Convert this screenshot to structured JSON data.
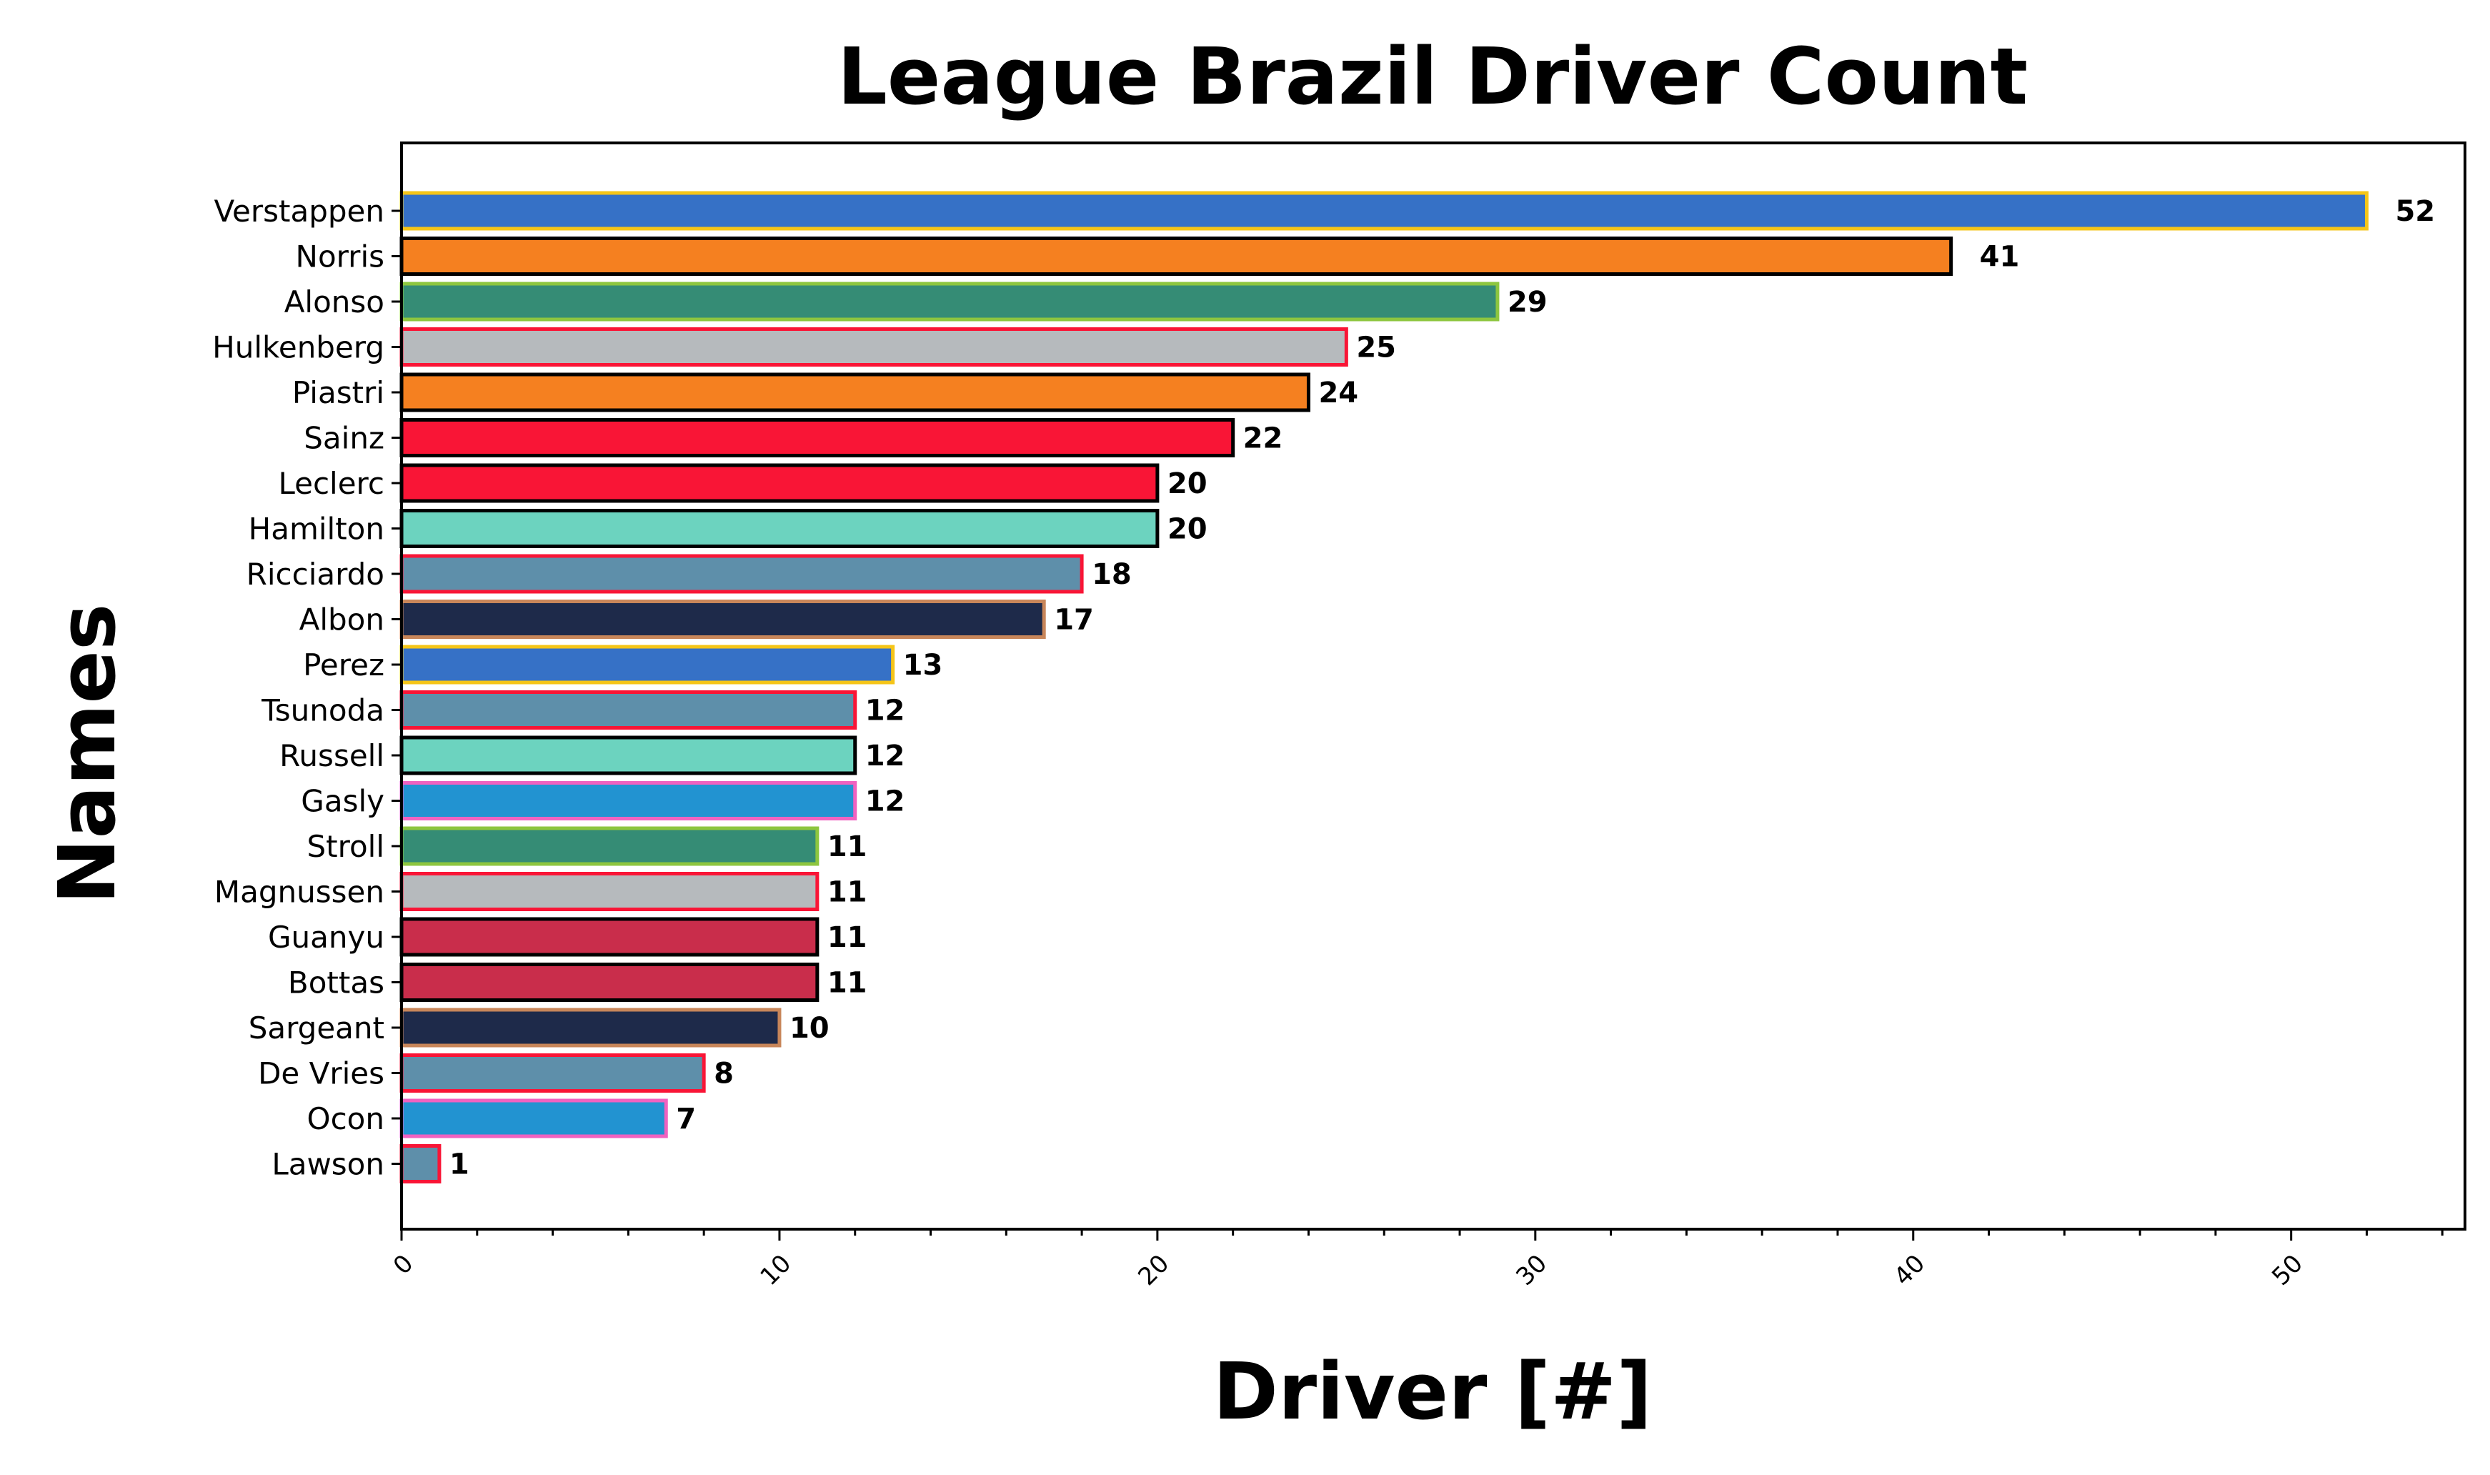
{
  "chart_data": {
    "type": "bar",
    "orientation": "horizontal",
    "title": "League Brazil Driver Count",
    "xlabel": "Driver [#]",
    "ylabel": "Names",
    "xlim": [
      0,
      54.6
    ],
    "xticks": [
      0,
      10,
      20,
      30,
      40,
      50
    ],
    "grid": false,
    "categories": [
      "Verstappen",
      "Norris",
      "Alonso",
      "Hulkenberg",
      "Piastri",
      "Sainz",
      "Leclerc",
      "Hamilton",
      "Ricciardo",
      "Albon",
      "Perez",
      "Tsunoda",
      "Russell",
      "Gasly",
      "Stroll",
      "Magnussen",
      "Guanyu",
      "Bottas",
      "Sargeant",
      "De Vries",
      "Ocon",
      "Lawson"
    ],
    "values": [
      52,
      41,
      29,
      25,
      24,
      22,
      20,
      20,
      18,
      17,
      13,
      12,
      12,
      12,
      11,
      11,
      11,
      11,
      10,
      8,
      7,
      1
    ],
    "fill_colors": [
      "#3671C6",
      "#F58020",
      "#358C75",
      "#B6BABD",
      "#F58020",
      "#F91536",
      "#F91536",
      "#6CD3BF",
      "#5E8FAA",
      "#1E2A4A",
      "#3671C6",
      "#5E8FAA",
      "#6CD3BF",
      "#2293D1",
      "#358C75",
      "#B6BABD",
      "#C92D4B",
      "#C92D4B",
      "#1E2A4A",
      "#5E8FAA",
      "#2293D1",
      "#5E8FAA"
    ],
    "edge_colors": [
      "#F5C518",
      "#000000",
      "#8DC63F",
      "#F91536",
      "#000000",
      "#000000",
      "#000000",
      "#000000",
      "#F91536",
      "#C8865A",
      "#F5C518",
      "#F91536",
      "#000000",
      "#F062C0",
      "#8DC63F",
      "#F91536",
      "#000000",
      "#000000",
      "#C8865A",
      "#F91536",
      "#F062C0",
      "#F91536"
    ]
  }
}
